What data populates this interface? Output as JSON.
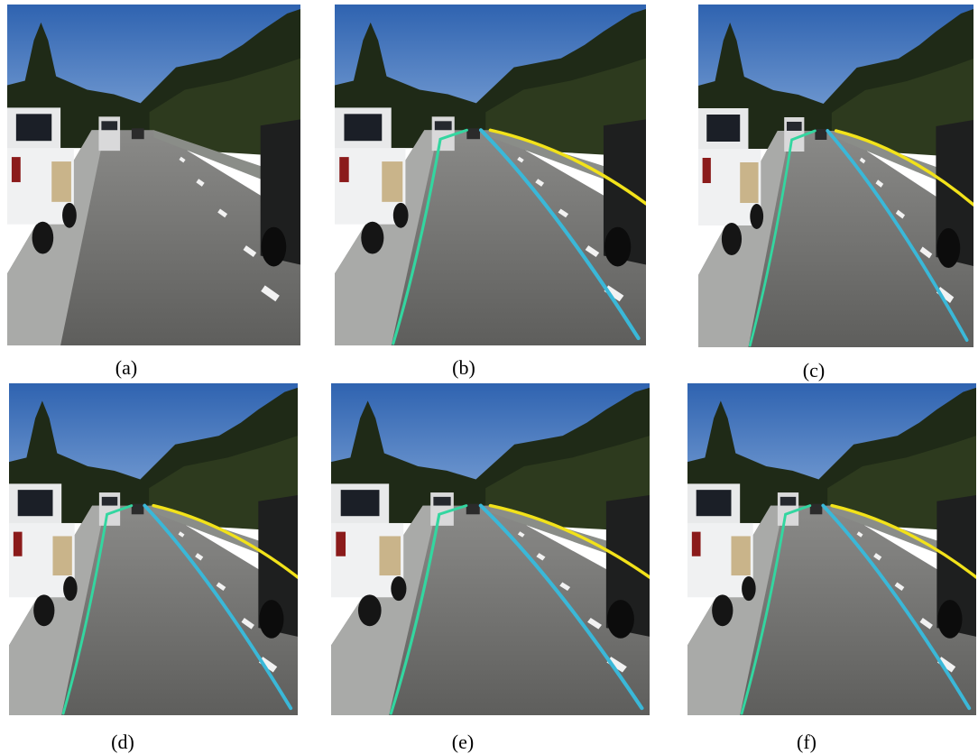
{
  "figure": {
    "panels": [
      {
        "id": "a",
        "label": "(a)",
        "overlay": "none"
      },
      {
        "id": "b",
        "label": "(b)",
        "overlay": "lanes"
      },
      {
        "id": "c",
        "label": "(c)",
        "overlay": "lanes"
      },
      {
        "id": "d",
        "label": "(d)",
        "overlay": "lanes"
      },
      {
        "id": "e",
        "label": "(e)",
        "overlay": "lanes"
      },
      {
        "id": "f",
        "label": "(f)",
        "overlay": "lanes"
      }
    ],
    "colors": {
      "sky": "#3b6fb8",
      "road": "#6f6f6f",
      "lane_green": "#33d6a0",
      "lane_cyan": "#3ab8d8",
      "lane_yellow": "#f2e21a"
    }
  }
}
